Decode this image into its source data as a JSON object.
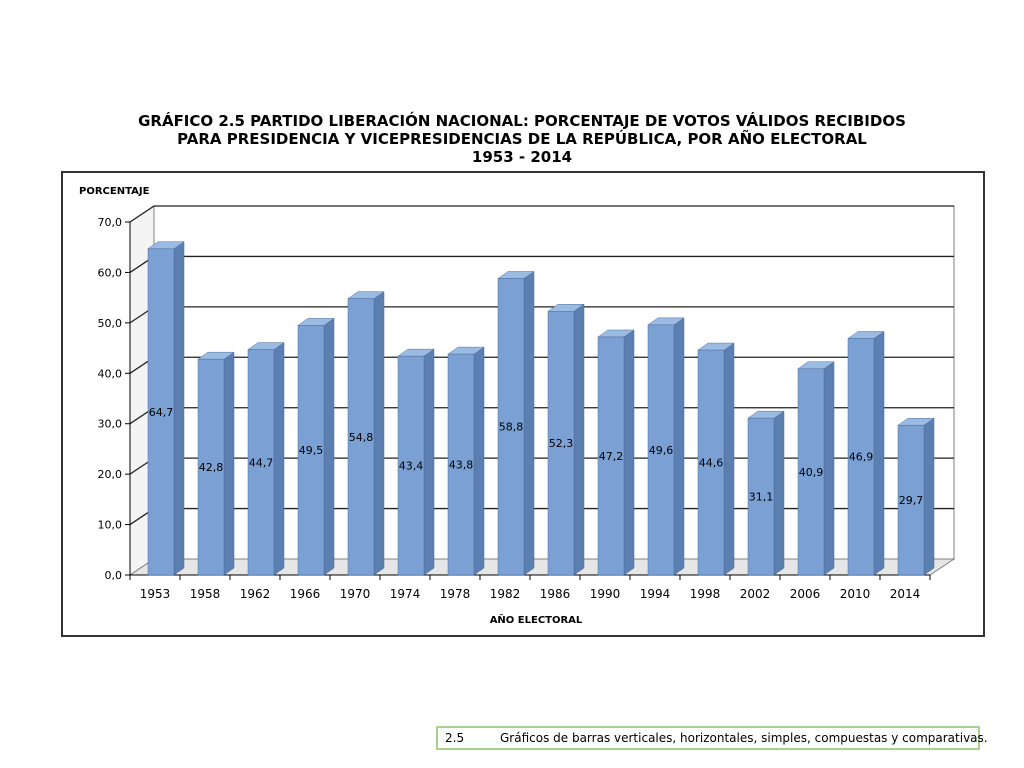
{
  "chart_data": {
    "type": "bar",
    "title_lines": [
      "GRÁFICO 2.5 PARTIDO LIBERACIÓN NACIONAL: PORCENTAJE DE VOTOS VÁLIDOS RECIBIDOS",
      "PARA PRESIDENCIA Y VICEPRESIDENCIAS DE LA REPÚBLICA, POR AÑO ELECTORAL",
      "1953 - 2014"
    ],
    "ylabel": "PORCENTAJE",
    "xlabel": "AÑO ELECTORAL",
    "ylim": [
      0,
      70
    ],
    "ytick_values": [
      0,
      10,
      20,
      30,
      40,
      50,
      60,
      70
    ],
    "ytick_labels": [
      "0,0",
      "10,0",
      "20,0",
      "30,0",
      "40,0",
      "50,0",
      "60,0",
      "70,0"
    ],
    "categories": [
      "1953",
      "1958",
      "1962",
      "1966",
      "1970",
      "1974",
      "1978",
      "1982",
      "1986",
      "1990",
      "1994",
      "1998",
      "2002",
      "2006",
      "2010",
      "2014"
    ],
    "values": [
      64.7,
      42.8,
      44.7,
      49.5,
      54.8,
      43.4,
      43.8,
      58.8,
      52.3,
      47.2,
      49.6,
      44.6,
      31.1,
      40.9,
      46.9,
      29.7
    ],
    "value_labels": [
      "64,7",
      "42,8",
      "44,7",
      "49,5",
      "54,8",
      "43,4",
      "43,8",
      "58,8",
      "52,3",
      "47,2",
      "49,6",
      "44,6",
      "31,1",
      "40,9",
      "46,9",
      "29,7"
    ],
    "grid": true,
    "bar_color": "#7ba0d4",
    "bar_side_color": "#5b7fb0",
    "bar_top_color": "#9cbbe3"
  },
  "caption": {
    "number": "2.5",
    "text": "Gráficos de barras verticales, horizontales, simples, compuestas y comparativas."
  }
}
